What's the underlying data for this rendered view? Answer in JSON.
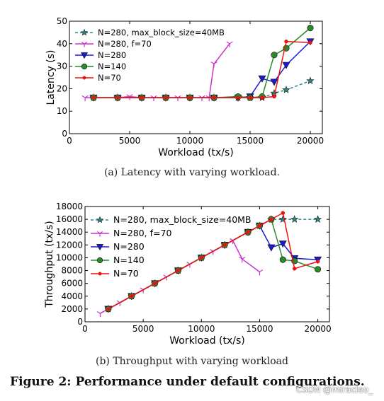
{
  "chart_data": [
    {
      "type": "line",
      "xlabel": "Workload (tx/s)",
      "ylabel": "Latency (s)",
      "xlim": [
        0,
        21000
      ],
      "ylim": [
        0,
        50
      ],
      "xticks": [
        0,
        5000,
        10000,
        15000,
        20000
      ],
      "yticks": [
        0,
        10,
        20,
        30,
        40,
        50
      ],
      "grid": false,
      "legend": "top-left",
      "series": [
        {
          "name": "N=280, max_block_size=40MB",
          "color": "#2a8a8a",
          "marker": "star",
          "dashed": true,
          "x": [
            2000,
            4000,
            6000,
            8000,
            10000,
            12000,
            14000,
            15000,
            16000,
            17000,
            18000,
            20000
          ],
          "y": [
            16,
            16,
            16,
            16,
            16,
            16,
            16,
            16,
            16,
            18,
            19.5,
            23.5
          ]
        },
        {
          "name": "N=280, f=70",
          "color": "#cc33cc",
          "marker": "tri_down_thin",
          "dashed": false,
          "x": [
            1300,
            4000,
            5000,
            6000,
            7000,
            8000,
            9000,
            10000,
            11000,
            11600,
            12000,
            13300
          ],
          "y": [
            16,
            16,
            16.5,
            16,
            16,
            16,
            16,
            16,
            16,
            16,
            31,
            40
          ]
        },
        {
          "name": "N=280",
          "color": "#1a1acc",
          "marker": "tri_down",
          "dashed": false,
          "x": [
            2000,
            4000,
            6000,
            8000,
            10000,
            12000,
            14000,
            15000,
            16000,
            17000,
            18000,
            20000
          ],
          "y": [
            16,
            16,
            16,
            16,
            16,
            16,
            16,
            16.5,
            24.5,
            23,
            30.5,
            41
          ]
        },
        {
          "name": "N=140",
          "color": "#2a8a2a",
          "marker": "circle",
          "dashed": false,
          "x": [
            2000,
            4000,
            6000,
            8000,
            10000,
            12000,
            14000,
            15000,
            16000,
            17000,
            18000,
            20000
          ],
          "y": [
            16,
            16,
            16,
            16,
            16,
            16,
            16.5,
            16,
            16.5,
            35,
            38,
            47
          ]
        },
        {
          "name": "N=70",
          "color": "#ee1111",
          "marker": "dot",
          "dashed": false,
          "x": [
            2000,
            4000,
            6000,
            8000,
            10000,
            12000,
            14000,
            15000,
            16000,
            17000,
            18000,
            20000
          ],
          "y": [
            16,
            16,
            16,
            16,
            16,
            16,
            16,
            16,
            16,
            16.5,
            41,
            40.5
          ]
        }
      ]
    },
    {
      "type": "line",
      "xlabel": "Workload (tx/s)",
      "ylabel": "Throughput (tx/s)",
      "xlim": [
        0,
        21000
      ],
      "ylim": [
        0,
        18000
      ],
      "xticks": [
        0,
        5000,
        10000,
        15000,
        20000
      ],
      "yticks": [
        0,
        2000,
        4000,
        6000,
        8000,
        10000,
        12000,
        14000,
        16000,
        18000
      ],
      "grid": false,
      "legend": "top-left",
      "series": [
        {
          "name": "N=280, max_block_size=40MB",
          "color": "#2a8a8a",
          "marker": "star",
          "dashed": true,
          "x": [
            2000,
            4000,
            6000,
            8000,
            10000,
            12000,
            14000,
            15000,
            16000,
            17000,
            18000,
            20000
          ],
          "y": [
            2000,
            4000,
            6000,
            8000,
            10000,
            12000,
            14000,
            15000,
            16000,
            16000,
            16000,
            16000
          ]
        },
        {
          "name": "N=280, f=70",
          "color": "#cc33cc",
          "marker": "tri_down_thin",
          "dashed": false,
          "x": [
            1300,
            2000,
            3000,
            4000,
            5000,
            6000,
            7000,
            8000,
            9000,
            10000,
            11000,
            12000,
            12700,
            13500,
            15000
          ],
          "y": [
            1300,
            2000,
            3000,
            4000,
            5000,
            6000,
            7000,
            8000,
            9000,
            10000,
            11000,
            12000,
            12700,
            9800,
            7800
          ]
        },
        {
          "name": "N=280",
          "color": "#1a1acc",
          "marker": "tri_down",
          "dashed": false,
          "x": [
            2000,
            4000,
            6000,
            8000,
            10000,
            12000,
            14000,
            15000,
            16000,
            17000,
            18000,
            20000
          ],
          "y": [
            2000,
            4000,
            6000,
            8000,
            10000,
            12000,
            14000,
            15000,
            11600,
            12200,
            9900,
            9700
          ]
        },
        {
          "name": "N=140",
          "color": "#2a8a2a",
          "marker": "circle",
          "dashed": false,
          "x": [
            2000,
            4000,
            6000,
            8000,
            10000,
            12000,
            14000,
            15000,
            16000,
            17000,
            18000,
            20000
          ],
          "y": [
            2000,
            4000,
            6000,
            8000,
            10000,
            12000,
            14000,
            15000,
            16000,
            9700,
            9500,
            8200
          ]
        },
        {
          "name": "N=70",
          "color": "#ee1111",
          "marker": "dot",
          "dashed": false,
          "x": [
            2000,
            4000,
            6000,
            8000,
            10000,
            12000,
            14000,
            15000,
            16000,
            17000,
            18000,
            20000
          ],
          "y": [
            2000,
            4000,
            6000,
            8000,
            10000,
            12000,
            14000,
            15000,
            16000,
            17000,
            8300,
            9400
          ]
        }
      ]
    }
  ],
  "captions": {
    "a": "(a) Latency with varying workload.",
    "b": "(b) Throughput with varying workload",
    "figure": "Figure 2: Performance under default configurations.",
    "watermark": "CSDN @miracleo_"
  }
}
